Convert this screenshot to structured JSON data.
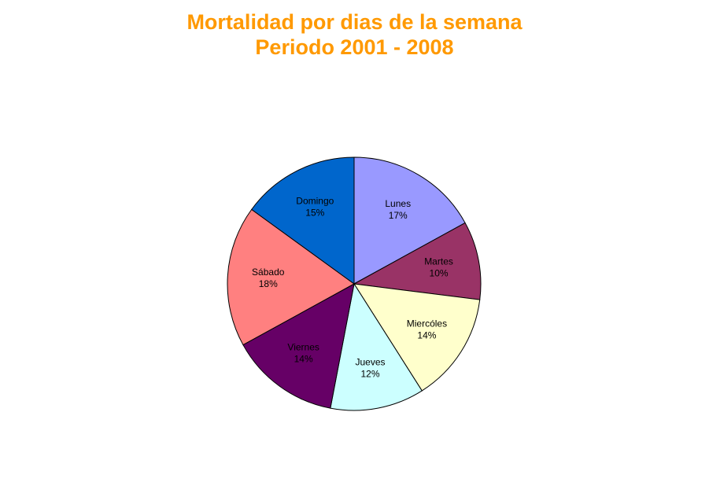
{
  "chart_data": {
    "type": "pie",
    "title": "Mortalidad por dias de la semana",
    "subtitle": "Periodo 2001 - 2008",
    "title_color": "#ff9900",
    "slices": [
      {
        "label": "Lunes",
        "value": 17,
        "display": "17%",
        "color": "#9999ff"
      },
      {
        "label": "Martes",
        "value": 10,
        "display": "10%",
        "color": "#993366"
      },
      {
        "label": "Miercóles",
        "value": 14,
        "display": "14%",
        "color": "#ffffcc"
      },
      {
        "label": "Jueves",
        "value": 12,
        "display": "12%",
        "color": "#ccffff"
      },
      {
        "label": "Viernes",
        "value": 14,
        "display": "14%",
        "color": "#660066"
      },
      {
        "label": "Sábado",
        "value": 18,
        "display": "18%",
        "color": "#ff8080"
      },
      {
        "label": "Domingo",
        "value": 15,
        "display": "15%",
        "color": "#0066cc"
      }
    ]
  }
}
